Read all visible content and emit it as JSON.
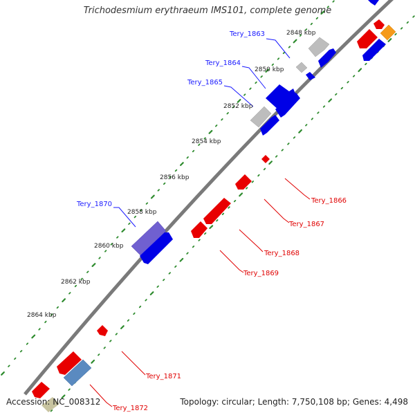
{
  "title": "Trichodesmium erythraeum IMS101, complete genome",
  "accession": "Accession: NC_008312",
  "stats": "Topology: circular; Length: 7,750,108 bp; Genes: 4,498",
  "colors": {
    "backbone": "#7a7a7a",
    "tick_dot": "#2e8b2e",
    "forward_label": "#1a1aff",
    "reverse_label": "#e00000",
    "red_gene": "#e80000",
    "blue_gene": "#0000e6",
    "grey_gene": "#bdbdbd",
    "purple_gene": "#7060d0",
    "steel_gene": "#5a8ac0",
    "orange_gene": "#f59a1a",
    "khaki_gene": "#c8c4a0"
  },
  "kbp_labels": [
    "2848 kbp",
    "2850 kbp",
    "2852 kbp",
    "2854 kbp",
    "2856 kbp",
    "2858 kbp",
    "2860 kbp",
    "2862 kbp",
    "2864 kbp"
  ],
  "gene_labels": {
    "forward": [
      "Tery_1863",
      "Tery_1864",
      "Tery_1865",
      "Tery_1870"
    ],
    "reverse": [
      "Tery_1866",
      "Tery_1867",
      "Tery_1868",
      "Tery_1869",
      "Tery_1871",
      "Tery_1872"
    ]
  }
}
